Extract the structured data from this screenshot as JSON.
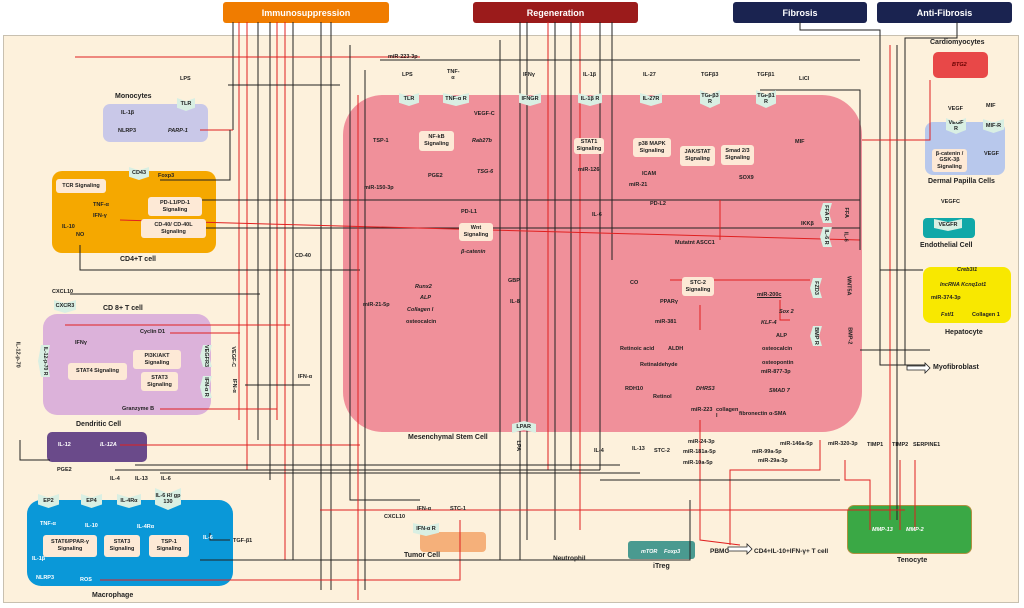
{
  "banners": {
    "immunosuppression": "Immunosuppression",
    "regeneration": "Regeneration",
    "fibrosis": "Fibrosis",
    "anti_fibrosis": "Anti-Fibrosis"
  },
  "colors": {
    "immunosuppression": "#f07c00",
    "regeneration": "#9b1b1b",
    "fibrosis": "#1a2350",
    "msc": "#f0909a",
    "cd4": "#f5a800",
    "cd8": "#dcb2da",
    "dendritic": "#6a4a8a",
    "macrophage": "#0a98d8",
    "monocytes": "#c9c8e8",
    "tenocyte": "#3aa845",
    "hepatocyte": "#f8e800",
    "endothelial": "#10a8a8",
    "itreg": "#4a9a90",
    "cardiomyocytes": "#e84848",
    "dermal": "#b8c8ec",
    "tumor": "#f5b07a"
  },
  "cells": {
    "monocytes": "Monocytes",
    "cd4": "CD4+T cell",
    "cd8": "CD 8+ T cell",
    "dendritic": "Dendritic Cell",
    "macrophage": "Macrophage",
    "msc": "Mesenchymal Stem Cell",
    "cardiomyocytes": "Cardiomyocytes",
    "dermal": "Dermal Papilla Cells",
    "endothelial": "Endothelial Cell",
    "hepatocyte": "Hepatocyte",
    "tumor": "Tumor Cell",
    "itreg": "iTreg",
    "tenocyte": "Tenocyte",
    "myofibroblast": "Myofibroblast",
    "neutrophil": "Neutrophil",
    "pbmc": "PBMC",
    "tcell_out": "CD4+IL-10+IFN-γ+ T cell"
  },
  "monocytes": {
    "lps": "LPS",
    "tlr": "TLR",
    "il1b": "IL-1β",
    "nlrp3": "NLRP3",
    "parp1": "PARP-1"
  },
  "cd4": {
    "cd43": "CD43",
    "foxp3": "Foxp3",
    "tcr": "TCR Signaling",
    "tnfa": "TNF-α",
    "ifng": "IFN-γ",
    "pdl1": "PD-L1/PD-1 Signaling",
    "il10": "IL-10",
    "no": "NO",
    "cd40l": "CD-40/ CD-40L Signaling",
    "cd40": "CD-40",
    "cxcl10": "CXCL10"
  },
  "cd8": {
    "cxcr3": "CXCR3",
    "cyclin": "Cyclin D1",
    "ifng": "IFNγ",
    "pi3k": "PI3K/AKT Signaling",
    "vegfr3": "VEGFR3",
    "vegfc": "VEGF-C",
    "stat4": "STAT4 Signaling",
    "stat3": "STAT3 Signaling",
    "ifnar": "IFN-α R",
    "ifna": "IFN-α",
    "ifna2": "IFN-α",
    "il12p70": "IL-12-p-70",
    "il12p70r": "IL-12-p-70 R",
    "granzyme": "Granzyme B"
  },
  "dendritic": {
    "il12": "IL-12",
    "il12a": "IL-12A"
  },
  "macrophage": {
    "pge2": "PGE2",
    "il4": "IL-4",
    "il13": "IL-13",
    "il6": "IL-6",
    "ep2": "EP2",
    "ep4": "EP4",
    "il4ra": "IL-4Rα",
    "il6r": "IL-6 R/ gp 130",
    "tnfa": "TNF-α",
    "il10": "IL-10",
    "il4ra2": "IL-4Rα",
    "stat6": "STAT6/PPAR-γ Signaling",
    "stat3": "STAT3 Signaling",
    "tsp1": "TSP-1 Signaling",
    "il6b": "IL-6",
    "tgfb1": "TGF-β1",
    "il1b": "IL-1β",
    "nlrp3": "NLRP3",
    "ros": "ROS"
  },
  "tumor": {
    "ifna": "IFN-α",
    "cxcl10": "CXCL10",
    "ifnar": "IFN-α R",
    "stc1": "STC-1"
  },
  "msc": {
    "mir223_3p": "miR-223-3p",
    "lps": "LPS",
    "tlr": "TLR",
    "tnfa": "TNF-α",
    "tnfar": "TNF-α R",
    "ifng": "IFNγ",
    "ifngr": "IFNGR",
    "il1b": "IL-1β",
    "il1br": "IL-1β R",
    "il27": "IL-27",
    "il27r": "IL-27R",
    "tgfb3": "TGFβ3",
    "tgfb3r": "TGFβ3 R",
    "tgfb1": "TGFβ1",
    "tgfb1r": "TGFβ1 R",
    "licl": "LiCl",
    "vegfc": "VEGF-C",
    "tsp1": "TSP-1",
    "nfkb": "NF-kB Signaling",
    "rab27b": "Rab27b",
    "stat1": "STAT1 Signaling",
    "p38": "p38 MAPK Signaling",
    "jak": "JAK/STAT Signaling",
    "smad23": "Smad 2/3 Signaling",
    "mif": "MIF",
    "mir150": "miR-150-3p",
    "pge2": "PGE2",
    "tsg6": "TSG-6",
    "mir126": "miR-126",
    "icam": "ICAM",
    "sox9": "SOX9",
    "mir21": "miR-21",
    "pdl1": "PD-L1",
    "il6": "IL-6",
    "pdl2": "PD-L2",
    "ikkb": "IKKβ",
    "wnt": "Wnt Signaling",
    "ascc1": "Mutatnt ASCC1",
    "bcat": "β-catenin",
    "runx2": "Runx2",
    "gbp": "GBP",
    "co": "CO",
    "stc2sig": "STC-2 Signaling",
    "alp": "ALP",
    "il8": "IL-8",
    "ppar": "PPARγ",
    "mir200c": "miR-200c",
    "mir21_5p": "miR-21-5p",
    "col1": "Collagen I",
    "sox2": "Sox 2",
    "osteo": "osteocalcin",
    "mir381": "miR-381",
    "klf4": "KLF-4",
    "alp2": "ALP",
    "retacid": "Retinoic acid",
    "aldh": "ALDH",
    "osteo2": "osteocalcin",
    "osteopontin": "osteopontin",
    "retald": "Retinaldehyde",
    "mir877": "miR-877-3p",
    "rdh10": "RDH10",
    "dhrs3": "DHRS3",
    "retinol": "Retinol",
    "smad7": "SMAD 7",
    "mir223": "miR-223",
    "collagen": "collagen I",
    "fibro": "fibronectin α-SMA",
    "lpar": "LPAR",
    "lpa": "LPA",
    "ffar": "FFA R",
    "ffa": "FFA",
    "il6r": "IL-6 R",
    "il6_2": "IL-6",
    "fzd3": "FZD3",
    "wnt5a": "WNT5A",
    "bmpr": "BMP R",
    "bmp2": "BMP-2"
  },
  "outputs": {
    "mir24": "miR-24-3p",
    "il4": "IL-4",
    "il13": "IL-13",
    "stc2": "STC-2",
    "mir181": "miR-181a-5p",
    "mir99": "miR-99a-5p",
    "mir146": "miR-146a-5p",
    "mir320": "miR-320-3p",
    "timp1": "TIMP1",
    "timp2": "TIMP2",
    "serpine1": "SERPINE1",
    "mir10": "miR-10a-5p",
    "mir29": "miR-29a-3p",
    "mtor": "mTOR",
    "foxp3": "Foxp3",
    "mmp13": "MMP-13",
    "mmp2": "MMP-2"
  },
  "right": {
    "btg2": "BTG2",
    "vegf": "VEGF",
    "mif": "MIF",
    "vegfr": "VEGF R",
    "mifr": "MIF-R",
    "bcat": "β-catenin / GSK-3β Signaling",
    "vegf2": "VEGF",
    "vegfc": "VEGFC",
    "vegfr2": "VEGFR",
    "creb": "Creb3l1",
    "lnc": "lncRNA Kcnq1ot1",
    "mir374": "miR-374-3p",
    "fstl1": "Fstl1",
    "col1": "Collagen 1"
  }
}
